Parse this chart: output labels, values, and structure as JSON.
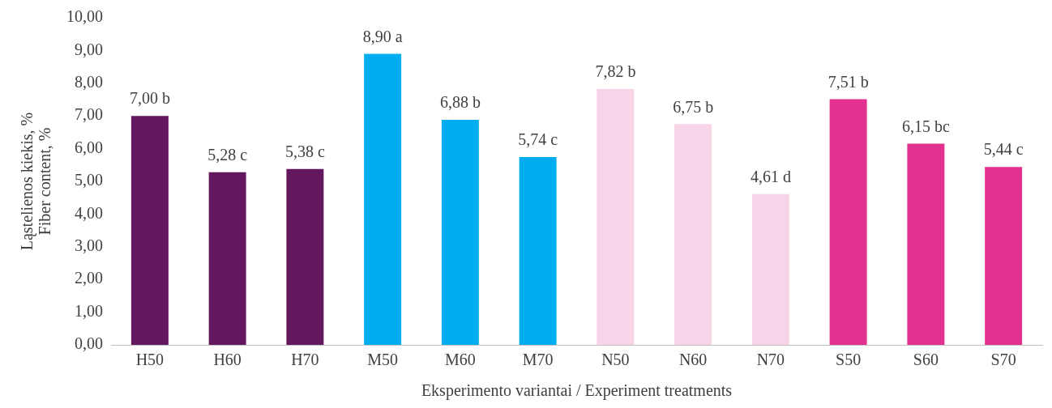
{
  "chart_data": {
    "type": "bar",
    "xlabel": "Eksperimento variantai / Experiment treatments",
    "ylabel": "Ląstelienos kiekis, %\nFiber content, %",
    "categories": [
      "H50",
      "H60",
      "H70",
      "M50",
      "M60",
      "M70",
      "N50",
      "N60",
      "N70",
      "S50",
      "S60",
      "S70"
    ],
    "values": [
      7.0,
      5.28,
      5.38,
      8.9,
      6.88,
      5.74,
      7.82,
      6.75,
      4.61,
      7.51,
      6.15,
      5.44
    ],
    "value_labels": [
      "7,00 b",
      "5,28 c",
      "5,38 c",
      "8,90 a",
      "6,88 b",
      "5,74 c",
      "7,82 b",
      "6,75 b",
      "4,61 d",
      "7,51 b",
      "6,15 bc",
      "5,44 c"
    ],
    "colors": [
      "#62175f",
      "#62175f",
      "#62175f",
      "#00aeef",
      "#00aeef",
      "#00aeef",
      "#f7d4e8",
      "#f7d4e8",
      "#f7d4e8",
      "#e3318f",
      "#e3318f",
      "#e3318f"
    ],
    "ylim": [
      0,
      10
    ],
    "yticks": [
      {
        "value": 0,
        "label": "0,00"
      },
      {
        "value": 1,
        "label": "1,00"
      },
      {
        "value": 2,
        "label": "2,00"
      },
      {
        "value": 3,
        "label": "3,00"
      },
      {
        "value": 4,
        "label": "4,00"
      },
      {
        "value": 5,
        "label": "5,00"
      },
      {
        "value": 6,
        "label": "6,00"
      },
      {
        "value": 7,
        "label": "7,00"
      },
      {
        "value": 8,
        "label": "8,00"
      },
      {
        "value": 9,
        "label": "9,00"
      },
      {
        "value": 10,
        "label": "10,00"
      }
    ],
    "grid": false,
    "legend": false
  }
}
